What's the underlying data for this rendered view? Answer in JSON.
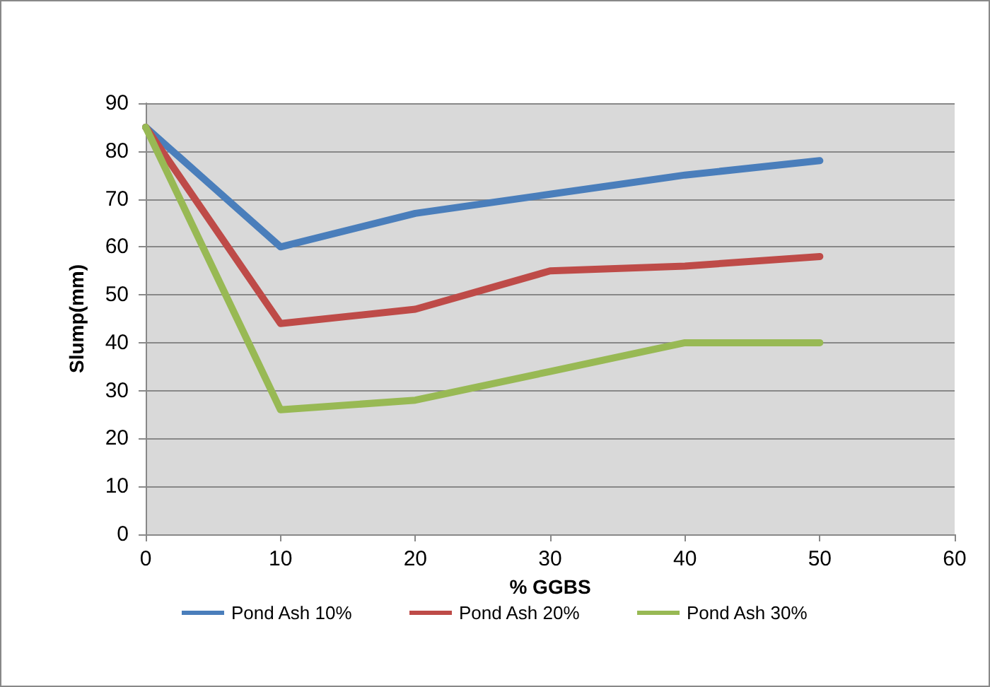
{
  "chart_data": {
    "type": "line",
    "xlabel": "% GGBS",
    "ylabel": "Slump(mm)",
    "x": [
      0,
      10,
      20,
      30,
      40,
      50
    ],
    "series": [
      {
        "name": "Pond Ash 10%",
        "color": "#4a7ebb",
        "values": [
          85,
          60,
          67,
          71,
          75,
          78
        ]
      },
      {
        "name": "Pond Ash 20%",
        "color": "#be4b48",
        "values": [
          85,
          44,
          47,
          55,
          56,
          58
        ]
      },
      {
        "name": "Pond Ash 30%",
        "color": "#98b954",
        "values": [
          85,
          26,
          28,
          34,
          40,
          40
        ]
      }
    ],
    "xlim": [
      0,
      60
    ],
    "xticks": [
      0,
      10,
      20,
      30,
      40,
      50,
      60
    ],
    "ylim": [
      0,
      90
    ],
    "yticks": [
      0,
      10,
      20,
      30,
      40,
      50,
      60,
      70,
      80,
      90
    ],
    "grid": "y",
    "legend": "bottom",
    "marker": "none",
    "line_style": "solid"
  }
}
